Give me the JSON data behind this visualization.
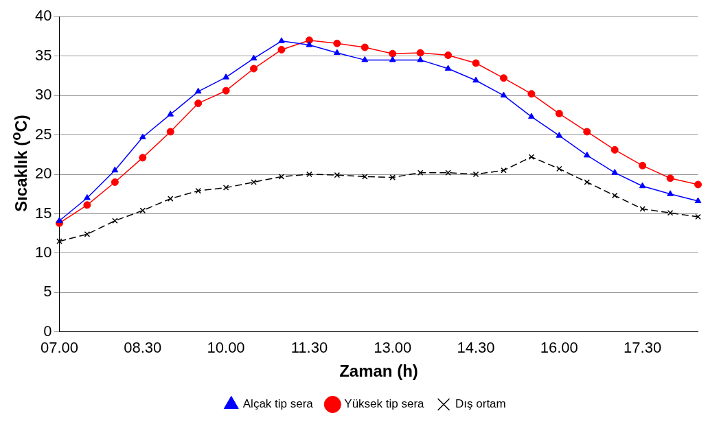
{
  "chart_data": {
    "type": "line",
    "xlabel": "Zaman (h)",
    "ylabel": "Sıcaklık ($^{o}$C)",
    "categories": [
      "07.00",
      null,
      null,
      "08.30",
      null,
      null,
      "10.00",
      null,
      null,
      "11.30",
      null,
      null,
      "13.00",
      null,
      null,
      "14.30",
      null,
      null,
      "16.00",
      null,
      null,
      "17.30",
      null,
      null
    ],
    "series": [
      {
        "name": "Alçak tip sera",
        "color": "#0000ff",
        "marker": "triangle",
        "line_style": "solid",
        "values": [
          14.1,
          17.0,
          20.5,
          24.7,
          27.6,
          30.5,
          32.3,
          34.7,
          36.9,
          36.4,
          35.4,
          34.5,
          34.5,
          34.5,
          33.4,
          31.9,
          30.0,
          27.3,
          24.9,
          22.4,
          20.2,
          18.5,
          17.5,
          16.6
        ]
      },
      {
        "name": "Yüksek tip sera",
        "color": "#ff0000",
        "marker": "circle",
        "line_style": "solid",
        "values": [
          13.8,
          16.1,
          19.0,
          22.1,
          25.4,
          29.0,
          30.6,
          33.4,
          35.8,
          37.0,
          36.6,
          36.1,
          35.3,
          35.4,
          35.1,
          34.1,
          32.2,
          30.2,
          27.7,
          25.4,
          23.1,
          21.1,
          19.5,
          18.7
        ]
      },
      {
        "name": "Dış ortam",
        "color": "#000000",
        "marker": "cross",
        "line_style": "dashed",
        "values": [
          11.5,
          12.4,
          14.1,
          15.4,
          16.9,
          17.9,
          18.3,
          19.0,
          19.7,
          20.0,
          19.9,
          19.7,
          19.6,
          20.2,
          20.2,
          20.0,
          20.5,
          22.2,
          20.7,
          19.0,
          17.3,
          15.6,
          15.1,
          14.6
        ]
      }
    ],
    "ylim": [
      0,
      40
    ],
    "yticks": [
      0,
      5,
      10,
      15,
      20,
      25,
      30,
      35,
      40
    ],
    "grid": "y",
    "legend": "bottom"
  }
}
